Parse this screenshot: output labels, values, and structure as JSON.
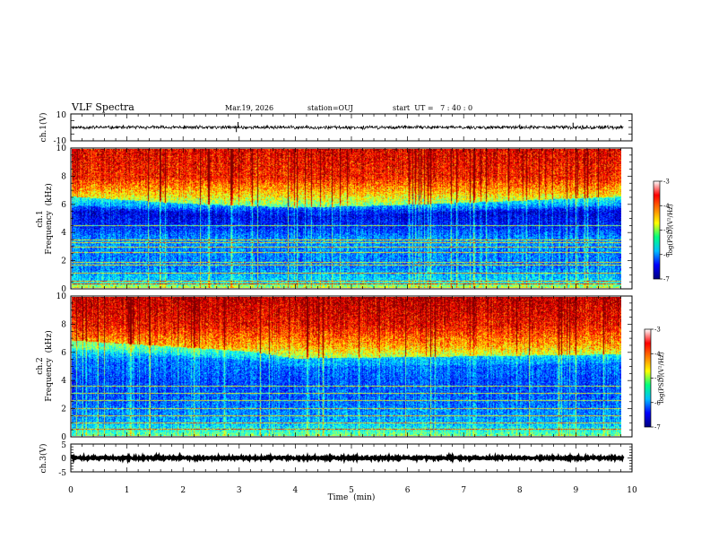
{
  "header": {
    "title": "VLF Spectra",
    "date": "Mar.19, 2026",
    "station": "station=OUJ",
    "start_ut": "start  UT =   7 : 40 : 0"
  },
  "chart_data": [
    {
      "type": "line",
      "name": "ch1-waveform",
      "ylabel": "ch.1(V)",
      "ylim": [
        -10,
        10
      ],
      "y_tick_labels": [
        "10",
        "-10"
      ],
      "xlim": [
        0,
        10
      ],
      "baseline": 0,
      "noise_amplitude": 1,
      "spikes": [
        {
          "t": 2.95,
          "v": -3.5
        },
        {
          "t": 2.98,
          "v": 4
        },
        {
          "t": 3.5,
          "v": 1.8
        },
        {
          "t": 8.0,
          "v": 2.2
        },
        {
          "t": 8.95,
          "v": 3.5
        },
        {
          "t": 9.2,
          "v": 1.5
        }
      ]
    },
    {
      "type": "heatmap",
      "name": "ch1-spectrogram",
      "ylabel": "ch.1 Frequency (kHz)",
      "ylabel_lines": [
        "ch.1",
        "Frequency  (kHz)"
      ],
      "ylim": [
        0,
        10
      ],
      "y_ticks": [
        0,
        2,
        4,
        6,
        8,
        10
      ],
      "xlim": [
        0,
        9.85
      ],
      "colorbar": {
        "label": "log(PSD)(V²/Hz)",
        "range": [
          -7,
          -3
        ],
        "tick_labels": [
          "-3",
          "-4",
          "-5",
          "-6",
          "-7"
        ],
        "colors": [
          "#00007f",
          "#0000ff",
          "#00bfff",
          "#00ff7f",
          "#ffff00",
          "#ff7f00",
          "#ff0000",
          "#ffffff"
        ]
      },
      "profile_kHz_logPSD": [
        [
          0,
          -4.6
        ],
        [
          0.5,
          -5.6
        ],
        [
          1.5,
          -6.0
        ],
        [
          2.5,
          -6.0
        ],
        [
          3.5,
          -5.9
        ],
        [
          4.5,
          -6.4
        ],
        [
          5.5,
          -6.6
        ],
        [
          6.0,
          -6.0
        ],
        [
          7.0,
          -5.2
        ],
        [
          8.0,
          -4.6
        ],
        [
          10.0,
          -4.4
        ]
      ],
      "cutoff_kHz": [
        [
          0,
          6.6
        ],
        [
          2,
          6.1
        ],
        [
          4,
          5.8
        ],
        [
          6,
          6.0
        ],
        [
          8,
          6.3
        ],
        [
          9.85,
          6.6
        ]
      ],
      "tone_lines_kHz": [
        0.3,
        0.5,
        1.1,
        1.65,
        1.9,
        2.6,
        3.0,
        3.3,
        3.5,
        4.5
      ]
    },
    {
      "type": "heatmap",
      "name": "ch2-spectrogram",
      "ylabel": "ch.2 Frequency (kHz)",
      "ylabel_lines": [
        "ch.2",
        "Frequency  (kHz)"
      ],
      "ylim": [
        0,
        10
      ],
      "y_ticks": [
        0,
        2,
        4,
        6,
        8,
        10
      ],
      "xlim": [
        0,
        9.85
      ],
      "colorbar": {
        "label": "log(PSD)(V²/Hz)",
        "range": [
          -7,
          -3
        ],
        "tick_labels": [
          "-3",
          "-4",
          "-5",
          "-6",
          "-7"
        ],
        "colors": [
          "#00007f",
          "#0000ff",
          "#00bfff",
          "#00ff7f",
          "#ffff00",
          "#ff7f00",
          "#ff0000",
          "#ffffff"
        ]
      },
      "profile_kHz_logPSD": [
        [
          0,
          -5.0
        ],
        [
          1.0,
          -5.8
        ],
        [
          2.5,
          -6.1
        ],
        [
          4.0,
          -6.2
        ],
        [
          5.5,
          -6.0
        ],
        [
          6.5,
          -5.2
        ],
        [
          8.0,
          -4.5
        ],
        [
          10.0,
          -4.2
        ]
      ],
      "cutoff_kHz": [
        [
          0,
          6.9
        ],
        [
          2,
          6.4
        ],
        [
          3.2,
          6.1
        ],
        [
          4,
          5.6
        ],
        [
          6,
          5.7
        ],
        [
          8,
          5.8
        ],
        [
          9.85,
          5.9
        ]
      ],
      "tone_lines_kHz": [
        0.5,
        1.0,
        1.5,
        2.0,
        2.6,
        3.1,
        3.6
      ]
    },
    {
      "type": "line",
      "name": "ch3-waveform",
      "ylabel": "ch.3(V)",
      "ylim": [
        -5,
        5
      ],
      "y_tick_labels": [
        "5",
        "0",
        "-5"
      ],
      "xlim": [
        0,
        10
      ],
      "baseline": 0,
      "noise_amplitude": 0.35
    }
  ],
  "x_axis": {
    "label": "Time  (min)",
    "tick_labels": [
      "0",
      "1",
      "2",
      "3",
      "4",
      "5",
      "6",
      "7",
      "8",
      "9",
      "10"
    ],
    "range": [
      0,
      10
    ]
  }
}
